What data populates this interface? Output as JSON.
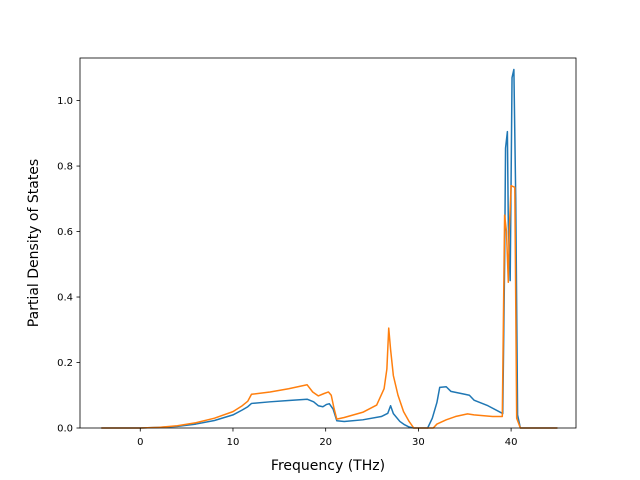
{
  "chart_data": {
    "type": "line",
    "title": "",
    "xlabel": "Frequency (THz)",
    "ylabel": "Partial Density of States",
    "xlim": [
      -6.5,
      47
    ],
    "ylim": [
      0,
      1.13
    ],
    "xticks": [
      0,
      10,
      20,
      30,
      40
    ],
    "yticks": [
      0.0,
      0.2,
      0.4,
      0.6,
      0.8,
      1.0
    ],
    "xtick_labels": [
      "0",
      "10",
      "20",
      "30",
      "40"
    ],
    "ytick_labels": [
      "0.0",
      "0.2",
      "0.4",
      "0.6",
      "0.8",
      "1.0"
    ],
    "grid": false,
    "legend": "none",
    "series": [
      {
        "color": "#1f77b4",
        "x": [
          -4.2,
          0,
          2,
          4,
          6,
          8,
          10,
          11,
          11.6,
          12,
          14,
          16,
          18,
          18.7,
          19.2,
          19.7,
          20.1,
          20.4,
          20.8,
          21.2,
          22,
          24,
          26,
          26.7,
          27,
          27.3,
          28,
          28.5,
          29,
          29.5,
          30.5,
          31,
          31.5,
          32,
          32.3,
          33,
          33.5,
          35,
          35.5,
          36,
          37.5,
          39.1,
          39.3,
          39.4,
          39.6,
          39.7,
          39.9,
          40.1,
          40.3,
          40.5,
          40.7,
          41,
          45
        ],
        "y": [
          0,
          0,
          0.002,
          0.005,
          0.012,
          0.023,
          0.04,
          0.055,
          0.065,
          0.075,
          0.08,
          0.084,
          0.088,
          0.08,
          0.068,
          0.065,
          0.072,
          0.074,
          0.058,
          0.022,
          0.02,
          0.025,
          0.035,
          0.045,
          0.068,
          0.044,
          0.02,
          0.01,
          0.003,
          0,
          0,
          0,
          0.03,
          0.078,
          0.124,
          0.126,
          0.112,
          0.103,
          0.1,
          0.085,
          0.068,
          0.044,
          0.5,
          0.855,
          0.905,
          0.62,
          0.45,
          1.07,
          1.095,
          0.7,
          0.04,
          0,
          0
        ]
      },
      {
        "color": "#ff7f0e",
        "x": [
          -4.2,
          0,
          2,
          4,
          6,
          8,
          10,
          11,
          11.6,
          12,
          14,
          16,
          18,
          18.6,
          19.2,
          19.8,
          20.3,
          20.6,
          20.9,
          21.2,
          22,
          24,
          25.5,
          26.3,
          26.6,
          26.8,
          27,
          27.3,
          27.8,
          28.4,
          29,
          29.5,
          30.5,
          31.6,
          32,
          33,
          34,
          35.3,
          36,
          38,
          39.05,
          39.3,
          39.5,
          39.7,
          39.8,
          40,
          40.4,
          40.6,
          41,
          45
        ],
        "y": [
          0,
          0,
          0.002,
          0.007,
          0.016,
          0.03,
          0.05,
          0.068,
          0.082,
          0.103,
          0.11,
          0.12,
          0.132,
          0.11,
          0.098,
          0.105,
          0.11,
          0.1,
          0.06,
          0.027,
          0.032,
          0.048,
          0.07,
          0.12,
          0.18,
          0.305,
          0.24,
          0.16,
          0.1,
          0.05,
          0.02,
          0,
          0,
          0,
          0.012,
          0.025,
          0.035,
          0.043,
          0.04,
          0.035,
          0.035,
          0.65,
          0.6,
          0.445,
          0.6,
          0.74,
          0.735,
          0.03,
          0,
          0
        ]
      }
    ]
  }
}
